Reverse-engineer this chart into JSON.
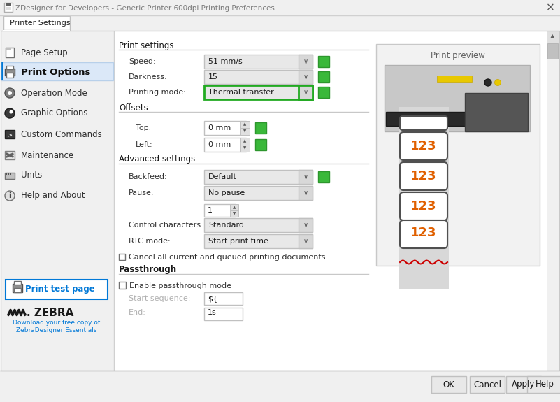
{
  "title_bar": "ZDesigner for Developers - Generic Printer 600dpi Printing Preferences",
  "title_bar_text_color": "#7a7a7a",
  "window_bg": "#f0f0f0",
  "tab_label": "Printer Settings",
  "left_items": [
    {
      "label": "Page Setup",
      "bold": false,
      "selected": false
    },
    {
      "label": "Print Options",
      "bold": true,
      "selected": true
    },
    {
      "label": "Operation Mode",
      "bold": false,
      "selected": false
    },
    {
      "label": "Graphic Options",
      "bold": false,
      "selected": false
    },
    {
      "label": "Custom Commands",
      "bold": false,
      "selected": false
    },
    {
      "label": "Maintenance",
      "bold": false,
      "selected": false
    },
    {
      "label": "Units",
      "bold": false,
      "selected": false
    },
    {
      "label": "Help and About",
      "bold": false,
      "selected": false
    }
  ],
  "left_items_y": [
    75,
    103,
    133,
    162,
    192,
    222,
    251,
    280
  ],
  "print_test_btn": "Print test page",
  "zebra_link": "Download your free copy of\nZebraDesigner Essentials",
  "section_print_settings": "Print settings",
  "speed_label": "Speed:",
  "speed_value": "51 mm/s",
  "darkness_label": "Darkness:",
  "darkness_value": "15",
  "printing_mode_label": "Printing mode:",
  "printing_mode_value": "Thermal transfer",
  "section_offsets": "Offsets",
  "top_label": "Top:",
  "top_value": "0 mm",
  "left_offset_label": "Left:",
  "left_offset_value": "0 mm",
  "section_advanced": "Advanced settings",
  "backfeed_label": "Backfeed:",
  "backfeed_value": "Default",
  "pause_label": "Pause:",
  "pause_value": "No pause",
  "pause_count": "1",
  "ctrl_chars_label": "Control characters:",
  "ctrl_chars_value": "Standard",
  "rtc_label": "RTC mode:",
  "rtc_value": "Start print time",
  "cancel_docs_label": "Cancel all current and queued printing documents",
  "section_passthrough": "Passthrough",
  "enable_passthrough_label": "Enable passthrough mode",
  "start_seq_label": "Start sequence:",
  "start_seq_value": "${",
  "print_preview_label": "Print preview",
  "ok_btn": "OK",
  "cancel_btn": "Cancel",
  "apply_btn": "Apply",
  "help_btn": "Help",
  "dd_bg": "#e8e8e8",
  "dd_border": "#c0c0c0",
  "green_sq": "#3ab83a",
  "green_border_color": "#2d962d",
  "highlight_border": "#22aa22",
  "selected_bg": "#dbe8f8",
  "selected_border": "#0078d7"
}
